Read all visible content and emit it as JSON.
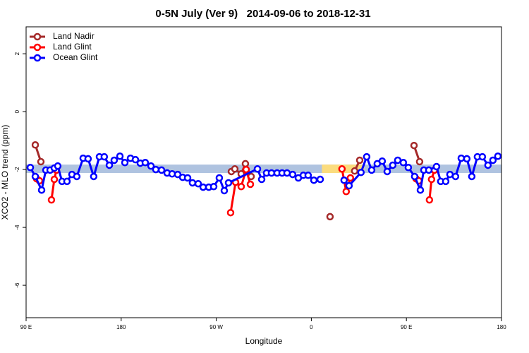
{
  "chart_data": {
    "type": "line",
    "title": "0-5N July (Ver 9)   2014-09-06 to 2018-12-31",
    "x_label": "Longitude",
    "y_label": "XCO2 - MLO trend (ppm)",
    "xlim": [
      90,
      540
    ],
    "ylim": [
      -7.12,
      2.93
    ],
    "xticks": [
      {
        "value": 90,
        "label": "90 E"
      },
      {
        "value": 180,
        "label": "180"
      },
      {
        "value": 270,
        "label": "90 W"
      },
      {
        "value": 360,
        "label": "0"
      },
      {
        "value": 450,
        "label": "90 E"
      },
      {
        "value": 540,
        "label": "180"
      }
    ],
    "yticks": [
      2,
      0,
      -2,
      -4,
      -6
    ],
    "legend": "top-left",
    "bands": [
      {
        "x": [
          90,
          540
        ],
        "y": [
          -2.12,
          -1.83
        ],
        "color": "#afc3e0"
      },
      {
        "x": [
          370,
          410
        ],
        "y": [
          -2.12,
          -1.83
        ],
        "color": "#fbdc7e"
      }
    ],
    "series": [
      {
        "name": "Land Nadir",
        "color": "#a52a2a",
        "x": [
          98.7,
          104,
          null,
          284.3,
          287.6,
          293.6,
          297.6,
          303,
          null,
          377.7,
          null,
          401,
          405.8,
          null,
          457.2,
          462.5
        ],
        "values": [
          -1.15,
          -1.73,
          null,
          -2.07,
          -1.98,
          -2.15,
          -1.8,
          -2.24,
          null,
          -3.63,
          null,
          -2.05,
          -1.68,
          null,
          -1.17,
          -1.73
        ]
      },
      {
        "name": "Land Glint",
        "color": "#ff0000",
        "x": [
          100,
          102.7,
          null,
          114,
          116.7,
          118.7,
          null,
          283.6,
          288.3,
          293.6,
          298.3,
          302.3,
          null,
          389,
          393,
          397,
          null,
          459.2,
          461.8,
          null,
          471.8,
          473.8,
          476.5
        ],
        "values": [
          -2.32,
          -2.39,
          null,
          -3.05,
          -2.34,
          -2.02,
          null,
          -3.49,
          -2.44,
          -2.59,
          -2.0,
          -2.51,
          null,
          -1.98,
          -2.76,
          -2.29,
          null,
          -2.32,
          -2.39,
          null,
          -3.05,
          -2.34,
          -2.02
        ]
      },
      {
        "name": "Ocean Glint",
        "color": "#0000ff",
        "x": [
          94,
          98.7,
          104.7,
          108.7,
          112.7,
          116.7,
          120,
          124,
          128.7,
          133.4,
          138,
          144,
          148.7,
          154,
          159.4,
          164,
          168.8,
          173.4,
          178.8,
          183.5,
          188.8,
          193.5,
          198.1,
          202.8,
          208.2,
          212.8,
          218.2,
          223.5,
          228.2,
          233.5,
          238.2,
          242.9,
          247.5,
          252.9,
          257.6,
          262.9,
          267.6,
          272.9,
          277.6,
          281.6,
          309,
          313,
          317.6,
          322.3,
          327.6,
          332.3,
          337,
          342.3,
          347.7,
          352.4,
          357,
          362.4,
          368.4,
          null,
          391,
          395.7,
          407,
          412.4,
          417.1,
          422.4,
          427.1,
          431.8,
          437.1,
          441.8,
          447.1,
          451.8,
          457.8,
          463.2,
          466.5,
          471.2,
          478.5,
          482.5,
          487.2,
          491.2,
          496.5,
          501.9,
          507.2,
          511.9,
          517.2,
          521.9,
          527.2,
          531.9,
          536.6
        ],
        "values": [
          -1.93,
          -2.24,
          -2.71,
          -2.02,
          -2.02,
          -1.95,
          -1.88,
          -2.41,
          -2.41,
          -2.17,
          -2.24,
          -1.61,
          -1.63,
          -2.24,
          -1.56,
          -1.56,
          -1.85,
          -1.68,
          -1.54,
          -1.76,
          -1.61,
          -1.66,
          -1.78,
          -1.76,
          -1.88,
          -2.0,
          -2.02,
          -2.12,
          -2.15,
          -2.17,
          -2.27,
          -2.29,
          -2.46,
          -2.49,
          -2.61,
          -2.61,
          -2.59,
          -2.29,
          -2.73,
          -2.46,
          -1.98,
          -2.34,
          -2.12,
          -2.12,
          -2.12,
          -2.12,
          -2.12,
          -2.17,
          -2.29,
          -2.2,
          -2.2,
          -2.37,
          -2.34,
          null,
          -2.37,
          -2.56,
          -2.1,
          -1.56,
          -2.02,
          -1.8,
          -1.71,
          -2.07,
          -1.85,
          -1.68,
          -1.76,
          -1.93,
          -2.24,
          -2.71,
          -2.02,
          -2.02,
          -1.9,
          -2.41,
          -2.41,
          -2.17,
          -2.24,
          -1.61,
          -1.63,
          -2.24,
          -1.56,
          -1.56,
          -1.85,
          -1.68,
          -1.54
        ]
      }
    ]
  }
}
